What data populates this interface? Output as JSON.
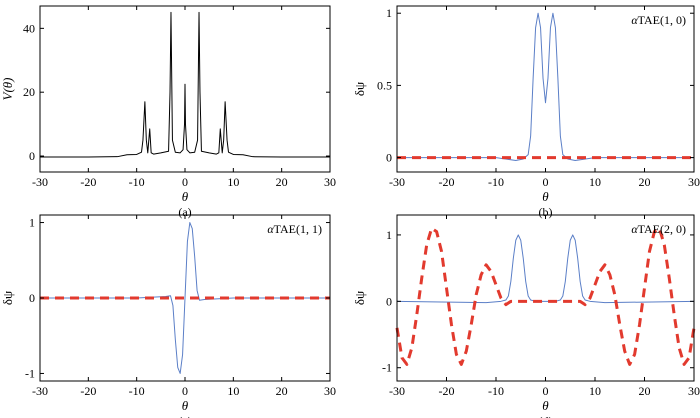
{
  "chart_data": [
    {
      "type": "line",
      "caption": "(a)",
      "ylabel": "V(θ)",
      "xlabel": "θ",
      "annotation": "",
      "xlim": [
        -30,
        30
      ],
      "ylim": [
        -5,
        47
      ],
      "xticks": [
        -30,
        -20,
        -10,
        0,
        10,
        20,
        30
      ],
      "xtick_labels": [
        "-30",
        "-20",
        "-10",
        "0",
        "10",
        "20",
        "30"
      ],
      "yticks": [
        0,
        20,
        40
      ],
      "ytick_labels": [
        "0",
        "20",
        "40"
      ],
      "series": [
        {
          "color": "#000000",
          "dashed": false,
          "x": [
            -30,
            -20,
            -14,
            -12,
            -10,
            -9,
            -8.7,
            -8.3,
            -8,
            -7.7,
            -7.3,
            -7,
            -6.5,
            -5,
            -3.4,
            -3.1,
            -2.9,
            -2.6,
            -2,
            -1,
            -0.4,
            -0.1,
            0,
            0.1,
            0.4,
            1,
            2,
            2.6,
            2.9,
            3.1,
            3.4,
            5,
            6.5,
            7,
            7.3,
            7.7,
            8,
            8.3,
            8.7,
            9,
            10,
            12,
            14,
            20,
            30
          ],
          "y": [
            -0.3,
            -0.3,
            -0.2,
            0.4,
            0.5,
            1.2,
            5,
            17,
            5,
            1,
            8.5,
            1,
            0.6,
            1,
            1.5,
            20,
            45,
            5,
            1.2,
            1,
            2,
            10,
            22.5,
            10,
            2,
            1,
            1.2,
            5,
            45,
            20,
            1.5,
            1,
            0.6,
            1,
            8.5,
            1,
            5,
            17,
            5,
            1.2,
            0.5,
            0.4,
            -0.2,
            -0.3,
            -0.3
          ]
        }
      ]
    },
    {
      "type": "line",
      "caption": "(b)",
      "ylabel": "δψ",
      "xlabel": "θ",
      "annotation": "αTAE(1, 0)",
      "xlim": [
        -30,
        30
      ],
      "ylim": [
        -0.1,
        1.05
      ],
      "xticks": [
        -30,
        -20,
        -10,
        0,
        10,
        20,
        30
      ],
      "xtick_labels": [
        "-30",
        "-20",
        "-10",
        "0",
        "10",
        "20",
        "30"
      ],
      "yticks": [
        0,
        0.5,
        1
      ],
      "ytick_labels": [
        "0",
        "0.5",
        "1"
      ],
      "series": [
        {
          "color": "#5b7fc7",
          "dashed": false,
          "x": [
            -30,
            -20,
            -10,
            -6,
            -4.5,
            -3.5,
            -3,
            -2.5,
            -2,
            -1.5,
            -1,
            -0.5,
            0,
            0.5,
            1,
            1.5,
            2,
            2.5,
            3,
            3.5,
            4.5,
            6,
            10,
            20,
            30
          ],
          "y": [
            0,
            0,
            0,
            -0.02,
            -0.01,
            0.02,
            0.15,
            0.55,
            0.9,
            1.0,
            0.9,
            0.55,
            0.38,
            0.55,
            0.9,
            1.0,
            0.9,
            0.55,
            0.15,
            0.02,
            -0.01,
            -0.02,
            0,
            0,
            0
          ]
        },
        {
          "color": "#e23a2e",
          "dashed": true,
          "x": [
            -30,
            -15,
            0,
            15,
            30
          ],
          "y": [
            0,
            0,
            0,
            0,
            0
          ]
        }
      ]
    },
    {
      "type": "line",
      "caption": "(c)",
      "ylabel": "δψ",
      "xlabel": "θ",
      "annotation": "αTAE(1, 1)",
      "xlim": [
        -30,
        30
      ],
      "ylim": [
        -1.1,
        1.1
      ],
      "xticks": [
        -30,
        -20,
        -10,
        0,
        10,
        20,
        30
      ],
      "xtick_labels": [
        "-30",
        "-20",
        "-10",
        "0",
        "10",
        "20",
        "30"
      ],
      "yticks": [
        -1,
        0,
        1
      ],
      "ytick_labels": [
        "-1",
        "0",
        "1"
      ],
      "series": [
        {
          "color": "#5b7fc7",
          "dashed": false,
          "x": [
            -30,
            -10,
            -4,
            -3,
            -2.5,
            -2,
            -1.5,
            -1,
            -0.5,
            0,
            0.5,
            1,
            1.5,
            2,
            2.5,
            3,
            4,
            10,
            30
          ],
          "y": [
            0,
            0,
            0.02,
            0.03,
            -0.1,
            -0.55,
            -0.92,
            -1.0,
            -0.75,
            0,
            0.75,
            1.0,
            0.92,
            0.55,
            0.1,
            -0.03,
            -0.02,
            0,
            0
          ]
        },
        {
          "color": "#e23a2e",
          "dashed": true,
          "x": [
            -30,
            -15,
            0,
            15,
            30
          ],
          "y": [
            0,
            0,
            0,
            0,
            0
          ]
        }
      ]
    },
    {
      "type": "line",
      "caption": "(d)",
      "ylabel": "δψ",
      "xlabel": "θ",
      "annotation": "αTAE(2, 0)",
      "xlim": [
        -30,
        30
      ],
      "ylim": [
        -1.2,
        1.3
      ],
      "xticks": [
        -30,
        -20,
        -10,
        0,
        10,
        20,
        30
      ],
      "xtick_labels": [
        "-30",
        "-20",
        "-10",
        "0",
        "10",
        "20",
        "30"
      ],
      "yticks": [
        -1,
        0,
        1
      ],
      "ytick_labels": [
        "-1",
        "0",
        "1"
      ],
      "series": [
        {
          "color": "#5b7fc7",
          "dashed": false,
          "x": [
            -30,
            -12,
            -9,
            -8,
            -7.5,
            -7,
            -6.5,
            -6,
            -5.5,
            -5,
            -4.5,
            -4,
            -3.5,
            -3,
            -2,
            0,
            2,
            3,
            3.5,
            4,
            4.5,
            5,
            5.5,
            6,
            6.5,
            7,
            7.5,
            8,
            9,
            12,
            30
          ],
          "y": [
            0,
            -0.02,
            0,
            0.02,
            0.08,
            0.3,
            0.65,
            0.92,
            1.0,
            0.92,
            0.65,
            0.3,
            0.08,
            0.02,
            0,
            0,
            0,
            0.02,
            0.08,
            0.3,
            0.65,
            0.92,
            1.0,
            0.92,
            0.65,
            0.3,
            0.08,
            0.02,
            0,
            -0.02,
            0
          ],
          "wave": false
        },
        {
          "color": "#e23a2e",
          "dashed": true,
          "x": [
            -30,
            -29,
            -28,
            -27,
            -26,
            -25,
            -24,
            -23,
            -22,
            -21,
            -20,
            -19,
            -18,
            -17,
            -16,
            -15,
            -14,
            -13,
            -12,
            -11,
            -10,
            -9,
            -8,
            -7,
            -6,
            -5,
            -4,
            -3,
            -2,
            -1,
            0,
            1,
            2,
            3,
            4,
            5,
            6,
            7,
            8,
            9,
            10,
            11,
            12,
            13,
            14,
            15,
            16,
            17,
            18,
            19,
            20,
            21,
            22,
            23,
            24,
            25,
            26,
            27,
            28,
            29,
            30
          ],
          "y": [
            -0.4,
            -0.85,
            -0.95,
            -0.7,
            -0.2,
            0.35,
            0.85,
            1.1,
            1.05,
            0.75,
            0.2,
            -0.35,
            -0.8,
            -0.95,
            -0.75,
            -0.35,
            0.1,
            0.4,
            0.55,
            0.45,
            0.25,
            0.05,
            -0.05,
            0,
            0,
            0,
            0,
            0,
            0,
            0,
            0,
            0,
            0,
            0,
            0,
            0,
            0,
            0,
            -0.05,
            0.05,
            0.25,
            0.45,
            0.55,
            0.4,
            0.1,
            -0.35,
            -0.75,
            -0.95,
            -0.8,
            -0.35,
            0.2,
            0.75,
            1.05,
            1.1,
            0.85,
            0.35,
            -0.2,
            -0.7,
            -0.95,
            -0.85,
            -0.4
          ]
        }
      ]
    }
  ]
}
